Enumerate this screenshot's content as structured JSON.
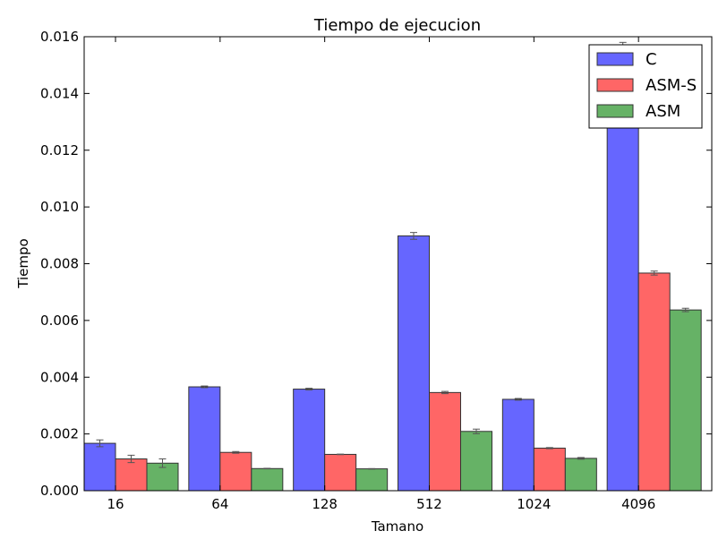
{
  "chart_data": {
    "type": "bar",
    "title": "Tiempo de ejecucion",
    "xlabel": "Tamano",
    "ylabel": "Tiempo",
    "categories": [
      "16",
      "64",
      "128",
      "512",
      "1024",
      "4096"
    ],
    "ylim": [
      0,
      0.016
    ],
    "yticks": [
      "0.000",
      "0.002",
      "0.004",
      "0.006",
      "0.008",
      "0.010",
      "0.012",
      "0.014",
      "0.016"
    ],
    "grid": false,
    "legend_position": "top-right",
    "series": [
      {
        "name": "C",
        "color": "#6666ff",
        "values": [
          0.00167,
          0.00366,
          0.00358,
          0.00898,
          0.00322,
          0.0156
        ],
        "errors": [
          0.00012,
          3e-05,
          3e-05,
          0.00012,
          3e-05,
          0.0002
        ]
      },
      {
        "name": "ASM-S",
        "color": "#ff6666",
        "values": [
          0.00112,
          0.00135,
          0.00128,
          0.00346,
          0.0015,
          0.00767
        ],
        "errors": [
          0.00013,
          3e-05,
          1e-05,
          4e-05,
          2e-05,
          7e-05
        ]
      },
      {
        "name": "ASM",
        "color": "#66b266",
        "values": [
          0.00097,
          0.00078,
          0.00077,
          0.00209,
          0.00114,
          0.00637
        ],
        "errors": [
          0.00015,
          1e-05,
          1e-05,
          8e-05,
          3e-05,
          6e-05
        ]
      }
    ]
  }
}
